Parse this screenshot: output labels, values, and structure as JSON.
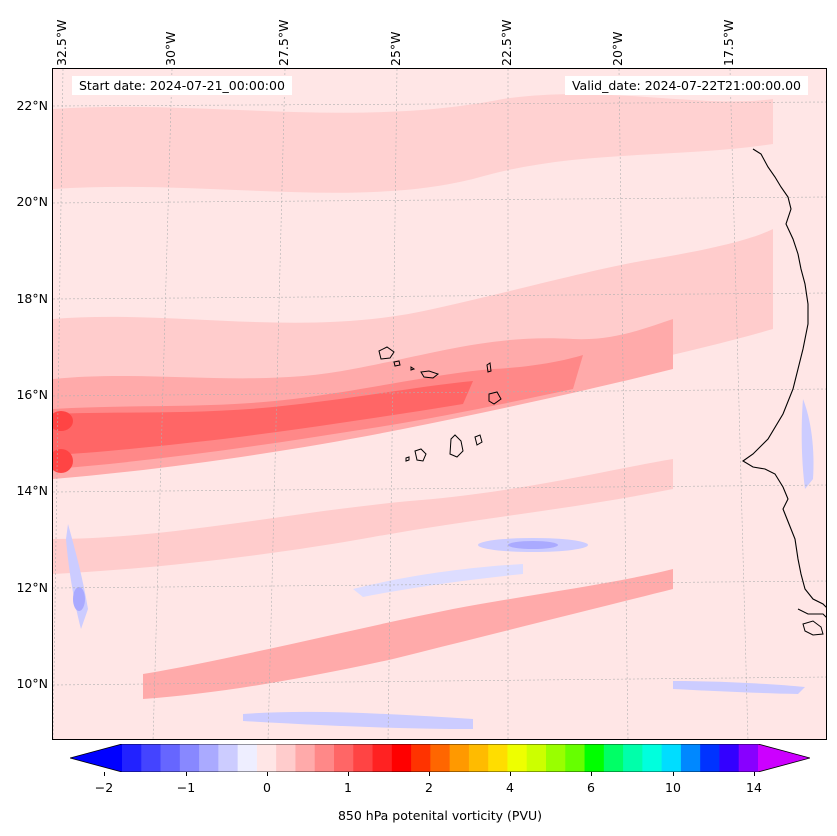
{
  "map": {
    "start_label": "Start date: 2024-07-21_00:00:00",
    "valid_label": "Valid_date: 2024-07-22T21:00:00.00",
    "variable": "850 hPa potenital vorticity (PVU)",
    "longitude_labels": [
      "32.5°W",
      "30°W",
      "27.5°W",
      "25°W",
      "22.5°W",
      "20°W",
      "17.5°W"
    ],
    "latitude_labels": [
      "22°N",
      "20°N",
      "18°N",
      "16°N",
      "14°N",
      "12°N",
      "10°N"
    ],
    "gridlines": true,
    "features": [
      "pv-band-16N",
      "cape-verde-islands",
      "west-african-coast",
      "negative-pv-band-13N",
      "negative-pv-band-9N"
    ]
  },
  "colorbar": {
    "ticks": [
      "−2",
      "−1",
      "0",
      "1",
      "2",
      "4",
      "6",
      "10",
      "14"
    ],
    "colors": [
      "#0000ff",
      "#2222ff",
      "#4444ff",
      "#6666ff",
      "#8888ff",
      "#aaaaff",
      "#ccccff",
      "#eeeeff",
      "#ffe6e6",
      "#ffcccc",
      "#ffaaaa",
      "#ff8888",
      "#ff6666",
      "#ff4444",
      "#ff2222",
      "#ff0000",
      "#ff3300",
      "#ff6600",
      "#ff9900",
      "#ffbb00",
      "#ffdd00",
      "#eeff00",
      "#ccff00",
      "#99ff00",
      "#66ff00",
      "#00ff00",
      "#00ff66",
      "#00ffaa",
      "#00ffdd",
      "#00ddff",
      "#0088ff",
      "#0033ff",
      "#3300ff",
      "#8800ff",
      "#cc00ff"
    ],
    "extend": "both"
  }
}
